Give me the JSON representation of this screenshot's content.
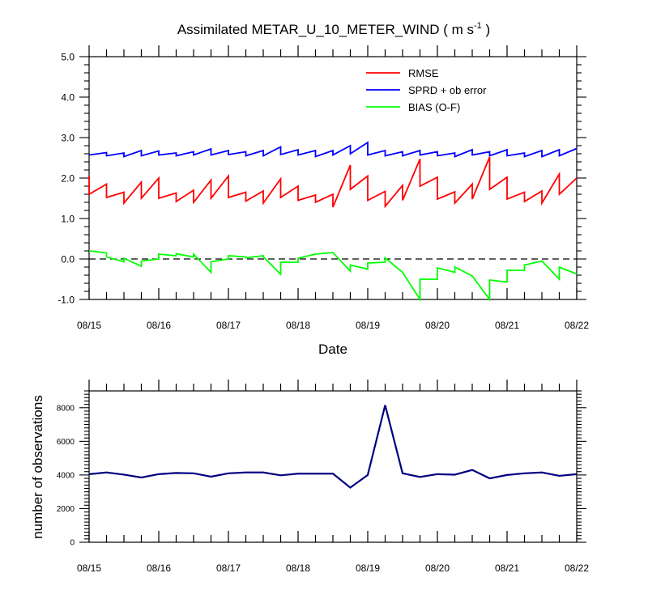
{
  "chart_data": [
    {
      "type": "line",
      "title": "Assimilated METAR_U_10_METER_WIND ( m s",
      "title_superscript": "-1",
      "title_end": " )",
      "xlabel": "Date",
      "ylabel": "",
      "xlim": [
        0,
        7
      ],
      "ylim": [
        -1.0,
        5.0
      ],
      "yticks": [
        "-1.0",
        "0.0",
        "1.0",
        "2.0",
        "3.0",
        "4.0",
        "5.0"
      ],
      "xtick_labels": [
        "08/15",
        "08/16",
        "08/17",
        "08/18",
        "08/19",
        "08/20",
        "08/21",
        "08/22"
      ],
      "reference_line": {
        "y": 0,
        "style": "dashed"
      },
      "legend": {
        "placement": "top-right"
      },
      "series": [
        {
          "name": "RMSE",
          "color": "#ff0000",
          "points": [
            [
              0,
              2.05
            ],
            [
              0,
              1.6
            ],
            [
              0.25,
              1.85
            ],
            [
              0.25,
              1.52
            ],
            [
              0.5,
              1.65
            ],
            [
              0.5,
              1.38
            ],
            [
              0.75,
              1.9
            ],
            [
              0.75,
              1.5
            ],
            [
              1,
              2.0
            ],
            [
              1,
              1.5
            ],
            [
              1.25,
              1.63
            ],
            [
              1.25,
              1.42
            ],
            [
              1.5,
              1.7
            ],
            [
              1.5,
              1.4
            ],
            [
              1.75,
              1.95
            ],
            [
              1.75,
              1.5
            ],
            [
              2,
              2.05
            ],
            [
              2,
              1.52
            ],
            [
              2.25,
              1.65
            ],
            [
              2.25,
              1.43
            ],
            [
              2.5,
              1.68
            ],
            [
              2.5,
              1.38
            ],
            [
              2.75,
              1.98
            ],
            [
              2.75,
              1.52
            ],
            [
              3,
              1.8
            ],
            [
              3,
              1.45
            ],
            [
              3.25,
              1.58
            ],
            [
              3.25,
              1.4
            ],
            [
              3.5,
              1.6
            ],
            [
              3.5,
              1.28
            ],
            [
              3.75,
              2.32
            ],
            [
              3.75,
              1.72
            ],
            [
              4,
              2.05
            ],
            [
              4,
              1.45
            ],
            [
              4.25,
              1.67
            ],
            [
              4.25,
              1.3
            ],
            [
              4.5,
              1.82
            ],
            [
              4.5,
              1.45
            ],
            [
              4.75,
              2.47
            ],
            [
              4.75,
              1.8
            ],
            [
              5,
              2.02
            ],
            [
              5,
              1.48
            ],
            [
              5.25,
              1.66
            ],
            [
              5.25,
              1.38
            ],
            [
              5.5,
              1.85
            ],
            [
              5.5,
              1.48
            ],
            [
              5.75,
              2.52
            ],
            [
              5.75,
              1.72
            ],
            [
              6,
              2.02
            ],
            [
              6,
              1.48
            ],
            [
              6.25,
              1.65
            ],
            [
              6.25,
              1.42
            ],
            [
              6.5,
              1.68
            ],
            [
              6.5,
              1.38
            ],
            [
              6.75,
              2.1
            ],
            [
              6.75,
              1.6
            ],
            [
              7,
              2.0
            ]
          ]
        },
        {
          "name": "SPRD + ob error",
          "color": "#0000ff",
          "points": [
            [
              0,
              2.57
            ],
            [
              0.25,
              2.63
            ],
            [
              0.25,
              2.55
            ],
            [
              0.5,
              2.62
            ],
            [
              0.5,
              2.53
            ],
            [
              0.75,
              2.68
            ],
            [
              0.75,
              2.55
            ],
            [
              1,
              2.67
            ],
            [
              1,
              2.57
            ],
            [
              1.25,
              2.62
            ],
            [
              1.25,
              2.55
            ],
            [
              1.5,
              2.65
            ],
            [
              1.5,
              2.57
            ],
            [
              1.75,
              2.72
            ],
            [
              1.75,
              2.57
            ],
            [
              2,
              2.68
            ],
            [
              2,
              2.58
            ],
            [
              2.25,
              2.65
            ],
            [
              2.25,
              2.55
            ],
            [
              2.5,
              2.68
            ],
            [
              2.5,
              2.55
            ],
            [
              2.75,
              2.77
            ],
            [
              2.75,
              2.58
            ],
            [
              3,
              2.7
            ],
            [
              3,
              2.57
            ],
            [
              3.25,
              2.68
            ],
            [
              3.25,
              2.53
            ],
            [
              3.5,
              2.68
            ],
            [
              3.5,
              2.57
            ],
            [
              3.75,
              2.8
            ],
            [
              3.75,
              2.6
            ],
            [
              4,
              2.88
            ],
            [
              4,
              2.57
            ],
            [
              4.25,
              2.68
            ],
            [
              4.25,
              2.55
            ],
            [
              4.5,
              2.65
            ],
            [
              4.5,
              2.55
            ],
            [
              4.75,
              2.68
            ],
            [
              4.75,
              2.57
            ],
            [
              5,
              2.65
            ],
            [
              5,
              2.55
            ],
            [
              5.25,
              2.62
            ],
            [
              5.25,
              2.53
            ],
            [
              5.5,
              2.7
            ],
            [
              5.5,
              2.57
            ],
            [
              5.75,
              2.65
            ],
            [
              5.75,
              2.55
            ],
            [
              6,
              2.7
            ],
            [
              6,
              2.55
            ],
            [
              6.25,
              2.62
            ],
            [
              6.25,
              2.53
            ],
            [
              6.5,
              2.68
            ],
            [
              6.5,
              2.53
            ],
            [
              6.75,
              2.7
            ],
            [
              6.75,
              2.55
            ],
            [
              7,
              2.73
            ]
          ]
        },
        {
          "name": "BIAS (O-F)",
          "color": "#00ff00",
          "points": [
            [
              0,
              0.2
            ],
            [
              0.25,
              0.15
            ],
            [
              0.25,
              0.05
            ],
            [
              0.5,
              -0.07
            ],
            [
              0.5,
              0.02
            ],
            [
              0.75,
              -0.18
            ],
            [
              0.75,
              -0.05
            ],
            [
              1,
              0.0
            ],
            [
              1,
              0.12
            ],
            [
              1.25,
              0.08
            ],
            [
              1.25,
              0.13
            ],
            [
              1.5,
              0.05
            ],
            [
              1.5,
              0.12
            ],
            [
              1.75,
              -0.33
            ],
            [
              1.75,
              -0.07
            ],
            [
              2,
              0.0
            ],
            [
              2,
              0.08
            ],
            [
              2.25,
              0.05
            ],
            [
              2.25,
              0.03
            ],
            [
              2.5,
              0.08
            ],
            [
              2.5,
              0.06
            ],
            [
              2.75,
              -0.38
            ],
            [
              2.75,
              -0.08
            ],
            [
              3,
              -0.08
            ],
            [
              3,
              0.02
            ],
            [
              3.25,
              0.12
            ],
            [
              3.5,
              0.16
            ],
            [
              3.75,
              -0.3
            ],
            [
              3.75,
              -0.15
            ],
            [
              4,
              -0.25
            ],
            [
              4,
              -0.1
            ],
            [
              4.25,
              -0.08
            ],
            [
              4.25,
              0.03
            ],
            [
              4.5,
              -0.33
            ],
            [
              4.75,
              -1.0
            ],
            [
              4.75,
              -0.5
            ],
            [
              5,
              -0.5
            ],
            [
              5,
              -0.22
            ],
            [
              5.25,
              -0.33
            ],
            [
              5.25,
              -0.2
            ],
            [
              5.5,
              -0.42
            ],
            [
              5.75,
              -1.0
            ],
            [
              5.75,
              -0.52
            ],
            [
              6,
              -0.57
            ],
            [
              6,
              -0.28
            ],
            [
              6.25,
              -0.28
            ],
            [
              6.25,
              -0.15
            ],
            [
              6.5,
              -0.05
            ],
            [
              6.75,
              -0.5
            ],
            [
              6.75,
              -0.2
            ],
            [
              7,
              -0.37
            ]
          ]
        }
      ]
    },
    {
      "type": "line",
      "title": "",
      "xlabel": "",
      "ylabel": "number of observations",
      "xlim": [
        0,
        7
      ],
      "ylim": [
        0,
        9000
      ],
      "yticks": [
        "0",
        "2000",
        "4000",
        "6000",
        "8000"
      ],
      "xtick_labels": [
        "08/15",
        "08/16",
        "08/17",
        "08/18",
        "08/19",
        "08/20",
        "08/21",
        "08/22"
      ],
      "series": [
        {
          "name": "number of observations",
          "color": "#000080",
          "x": [
            0,
            0.25,
            0.5,
            0.75,
            1,
            1.25,
            1.5,
            1.75,
            2,
            2.25,
            2.5,
            2.75,
            3,
            3.25,
            3.5,
            3.75,
            4,
            4.25,
            4.5,
            4.75,
            5,
            5.25,
            5.5,
            5.75,
            6,
            6.25,
            6.5,
            6.75,
            7
          ],
          "y": [
            4050,
            4150,
            4020,
            3850,
            4050,
            4120,
            4100,
            3900,
            4100,
            4150,
            4150,
            3980,
            4080,
            4080,
            4080,
            3250,
            4000,
            8150,
            4100,
            3880,
            4050,
            4020,
            4300,
            3800,
            4000,
            4100,
            4150,
            3950,
            4050
          ]
        }
      ]
    }
  ]
}
